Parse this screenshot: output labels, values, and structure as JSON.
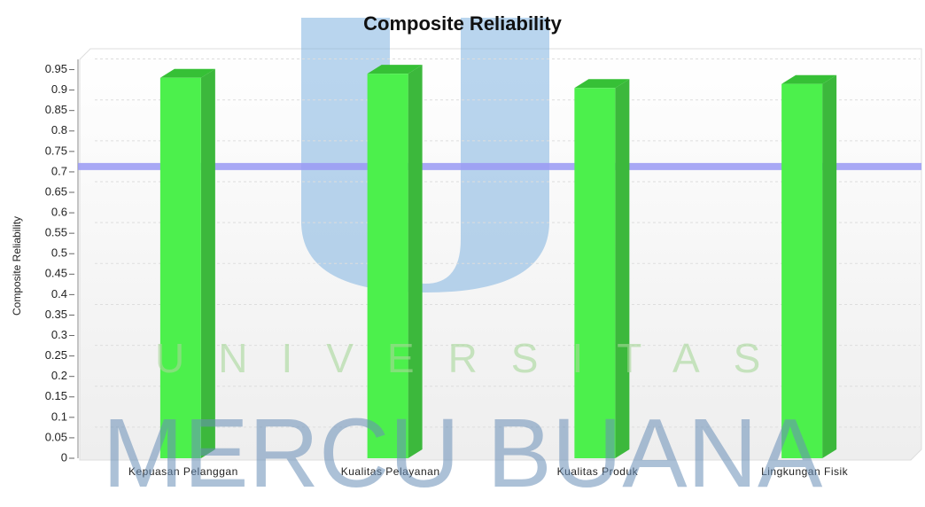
{
  "chart_data": {
    "type": "bar",
    "title": "Composite Reliability",
    "y_label": "Composite Reliability",
    "categories": [
      "Kepuasan Pelanggan",
      "Kualitas Pelayanan",
      "Kualitas Produk",
      "Lingkungan Fisik"
    ],
    "values": [
      0.93,
      0.94,
      0.905,
      0.915
    ],
    "color": "#4cf04c",
    "threshold": 0.7,
    "threshold_color": "#9a9af5",
    "ylim": [
      0,
      0.975
    ],
    "yticks": [
      0,
      0.05,
      0.1,
      0.15,
      0.2,
      0.25,
      0.3,
      0.35,
      0.4,
      0.45,
      0.5,
      0.55,
      0.6,
      0.65,
      0.7,
      0.75,
      0.8,
      0.85,
      0.9,
      0.95
    ],
    "grid": true,
    "watermark": [
      "UNIVERSITAS",
      "MERCU BUANA"
    ]
  }
}
